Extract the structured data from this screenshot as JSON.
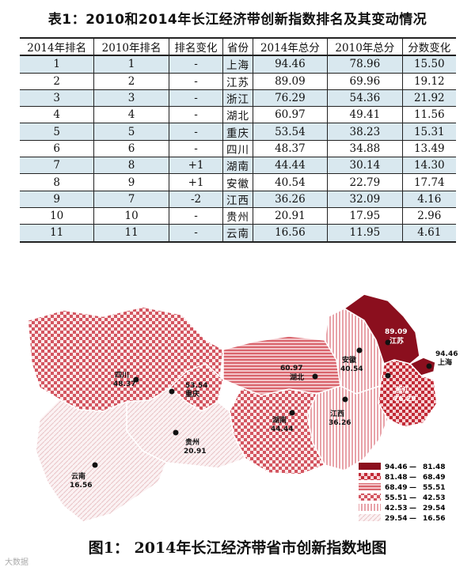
{
  "title": "表1：2010和2014年长江经济带创新指数排名及其变动情况",
  "table": {
    "headers": [
      "2014年排名",
      "2010年排名",
      "排名变化",
      "省份",
      "2014年总分",
      "2010年总分",
      "分数变化"
    ],
    "rows": [
      [
        "1",
        "1",
        "-",
        "上海",
        "94.46",
        "78.96",
        "15.50"
      ],
      [
        "2",
        "2",
        "-",
        "江苏",
        "89.09",
        "69.96",
        "19.12"
      ],
      [
        "3",
        "3",
        "-",
        "浙江",
        "76.29",
        "54.36",
        "21.92"
      ],
      [
        "4",
        "4",
        "-",
        "湖北",
        "60.97",
        "49.41",
        "11.56"
      ],
      [
        "5",
        "5",
        "-",
        "重庆",
        "53.54",
        "38.23",
        "15.31"
      ],
      [
        "6",
        "6",
        "-",
        "四川",
        "48.37",
        "34.88",
        "13.49"
      ],
      [
        "7",
        "8",
        "+1",
        "湖南",
        "44.44",
        "30.14",
        "14.30"
      ],
      [
        "8",
        "9",
        "+1",
        "安徽",
        "40.54",
        "22.79",
        "17.74"
      ],
      [
        "9",
        "7",
        "-2",
        "江西",
        "36.26",
        "32.09",
        "4.16"
      ],
      [
        "10",
        "10",
        "-",
        "贵州",
        "20.91",
        "17.95",
        "2.96"
      ],
      [
        "11",
        "11",
        "-",
        "云南",
        "16.56",
        "11.95",
        "4.61"
      ]
    ]
  },
  "map": {
    "labels": {
      "sichuan": {
        "name": "四川",
        "value": "48.37"
      },
      "chongqing": {
        "name": "重庆",
        "value": "53.54"
      },
      "hubei": {
        "name": "湖北",
        "value": "60.97"
      },
      "anhui": {
        "name": "安徽",
        "value": "40.54"
      },
      "jiangsu": {
        "name": "江苏",
        "value": "89.09"
      },
      "shanghai": {
        "name": "上海",
        "value": "94.46"
      },
      "zhejiang": {
        "name": "浙江",
        "value": "76.29"
      },
      "jiangxi": {
        "name": "江西",
        "value": "36.26"
      },
      "hunan": {
        "name": "湖南",
        "value": "44.44"
      },
      "guizhou": {
        "name": "贵州",
        "value": "20.91"
      },
      "yunnan": {
        "name": "云南",
        "value": "16.56"
      }
    },
    "legend": [
      {
        "from": "94.46",
        "to": "81.48",
        "color": "#8b0f1e"
      },
      {
        "from": "81.48",
        "to": "68.49",
        "color": "#c22a36"
      },
      {
        "from": "68.49",
        "to": "55.51",
        "color": "#d9646c"
      },
      {
        "from": "55.51",
        "to": "42.53",
        "color": "#e18a90"
      },
      {
        "from": "42.53",
        "to": "29.54",
        "color": "#eab3b7"
      },
      {
        "from": "29.54",
        "to": "16.56",
        "color": "#f3dadc"
      }
    ]
  },
  "caption": "图1：  2014年长江经济带省市创新指数地图",
  "watermark": "大数据"
}
